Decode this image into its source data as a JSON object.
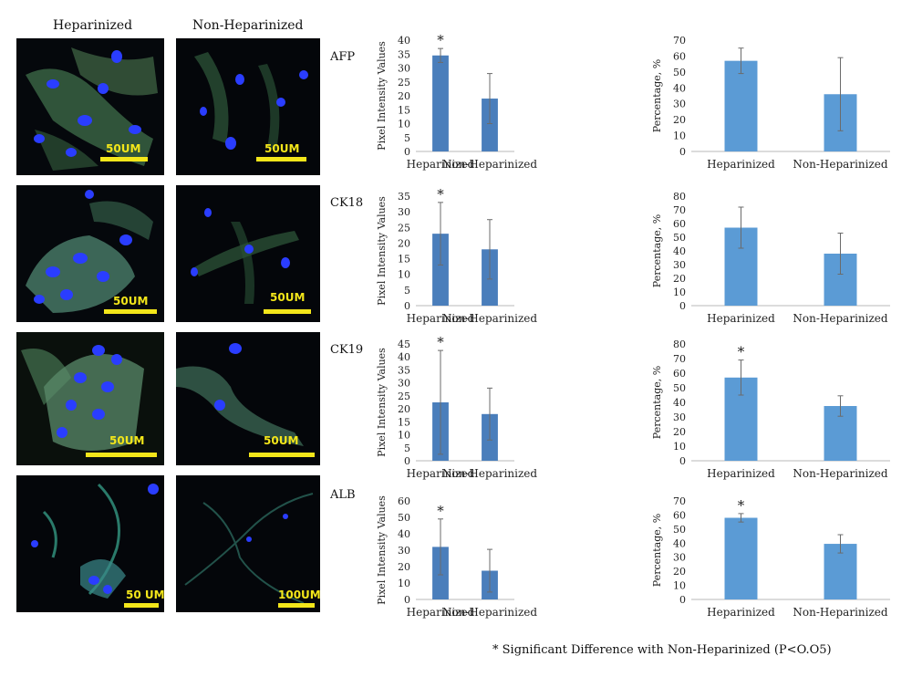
{
  "columns": {
    "left": "Heparinized",
    "right": "Non-Heparinized"
  },
  "markers": [
    "AFP",
    "CK18",
    "CK19",
    "ALB"
  ],
  "scale_bars": [
    [
      "50UM",
      "50UM"
    ],
    [
      "50UM",
      "50UM"
    ],
    [
      "50UM",
      "50UM"
    ],
    [
      "50 UM",
      "100UM"
    ]
  ],
  "footnote": "* Significant Difference with Non-Heparinized (P<O.O5)",
  "colors": {
    "pixel_bar": "#4a7ebb",
    "percent_bar": "#5b9bd5",
    "scale_bar": "#f3e61a"
  },
  "chart_data": [
    {
      "type": "bar",
      "marker": "AFP",
      "ylabel": "Pixel Intensity Values",
      "categories": [
        "Heparinized",
        "Non-Heparinized"
      ],
      "values": [
        34.5,
        19
      ],
      "errors": [
        2.5,
        9
      ],
      "ylim": [
        0,
        40
      ],
      "step": 5,
      "significant": [
        true,
        false
      ]
    },
    {
      "type": "bar",
      "marker": "AFP",
      "ylabel": "Percentage, %",
      "categories": [
        "Heparinized",
        "Non-Heparinized"
      ],
      "values": [
        57,
        36
      ],
      "errors": [
        8,
        23
      ],
      "ylim": [
        0,
        70
      ],
      "step": 10,
      "significant": [
        false,
        false
      ]
    },
    {
      "type": "bar",
      "marker": "CK18",
      "ylabel": "Pixel Intensity Values",
      "categories": [
        "Heparinized",
        "Non-Heparinized"
      ],
      "values": [
        23,
        18
      ],
      "errors": [
        10,
        9.5
      ],
      "ylim": [
        0,
        35
      ],
      "step": 5,
      "significant": [
        true,
        false
      ]
    },
    {
      "type": "bar",
      "marker": "CK18",
      "ylabel": "Percentage, %",
      "categories": [
        "Heparinized",
        "Non-Heparinized"
      ],
      "values": [
        57,
        38
      ],
      "errors": [
        15,
        15
      ],
      "ylim": [
        0,
        80
      ],
      "step": 10,
      "significant": [
        false,
        false
      ]
    },
    {
      "type": "bar",
      "marker": "CK19",
      "ylabel": "Pixel Intensity Values",
      "categories": [
        "Heparinized",
        "Non-Heparinized"
      ],
      "values": [
        22.5,
        18
      ],
      "errors": [
        20,
        10
      ],
      "ylim": [
        0,
        45
      ],
      "step": 5,
      "significant": [
        true,
        false
      ]
    },
    {
      "type": "bar",
      "marker": "CK19",
      "ylabel": "Percentage, %",
      "categories": [
        "Heparinized",
        "Non-Heparinized"
      ],
      "values": [
        57,
        37.5
      ],
      "errors": [
        12,
        7
      ],
      "ylim": [
        0,
        80
      ],
      "step": 10,
      "significant": [
        true,
        false
      ]
    },
    {
      "type": "bar",
      "marker": "ALB",
      "ylabel": "Pixel Intensity Values",
      "categories": [
        "Heparinized",
        "Non-Heparinized"
      ],
      "values": [
        32,
        17.5
      ],
      "errors": [
        17,
        13
      ],
      "ylim": [
        0,
        60
      ],
      "step": 10,
      "significant": [
        true,
        false
      ]
    },
    {
      "type": "bar",
      "marker": "ALB",
      "ylabel": "Percentage, %",
      "categories": [
        "Heparinized",
        "Non-Heparinized"
      ],
      "values": [
        58,
        39.5
      ],
      "errors": [
        3,
        6.5
      ],
      "ylim": [
        0,
        70
      ],
      "step": 10,
      "significant": [
        true,
        false
      ]
    }
  ]
}
